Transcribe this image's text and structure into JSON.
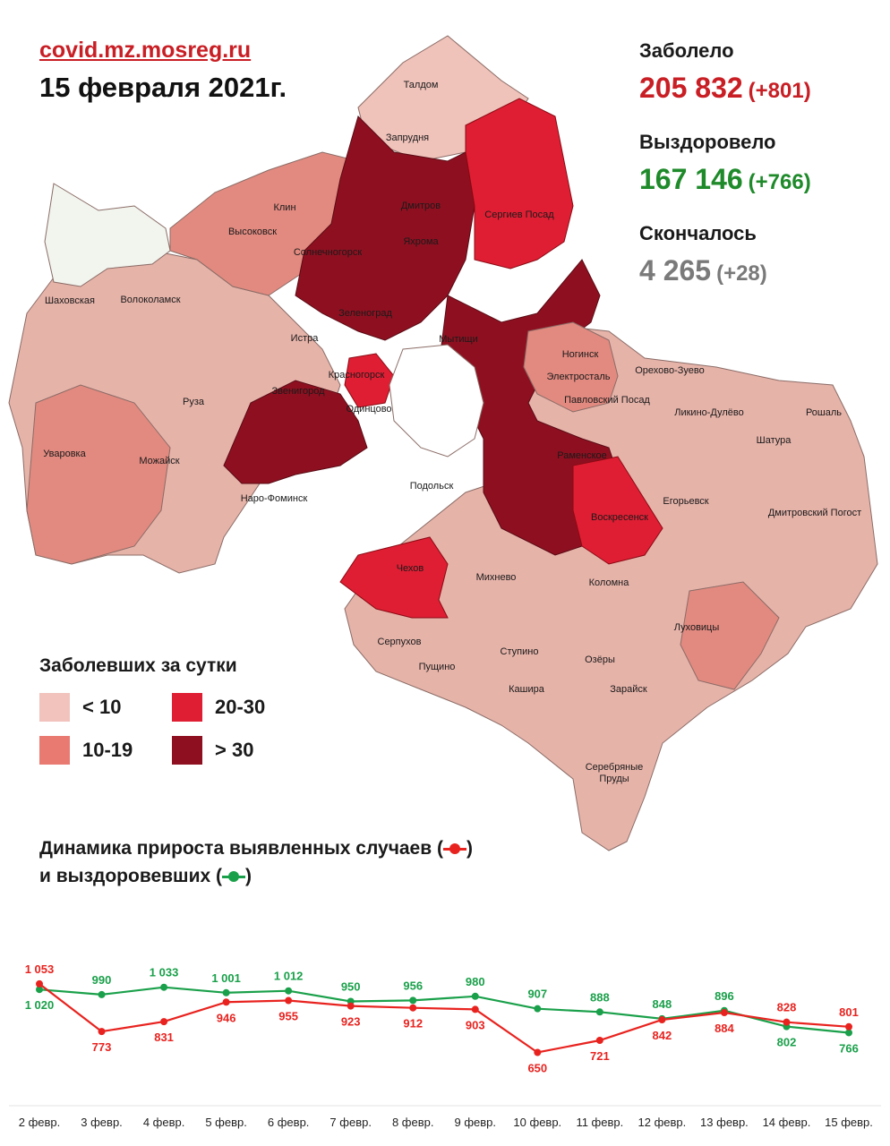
{
  "header": {
    "site": "covid.mz.mosreg.ru",
    "date": "15 февраля 2021г."
  },
  "stats": {
    "infected": {
      "label": "Заболело",
      "value": "205 832",
      "delta": "(+801)",
      "color": "#c81e24"
    },
    "recovered": {
      "label": "Выздоровело",
      "value": "167 146",
      "delta": "(+766)",
      "color": "#1e8a2a"
    },
    "died": {
      "label": "Скончалось",
      "value": "4 265",
      "delta": "(+28)",
      "color": "#7a7a7a"
    }
  },
  "legend": {
    "title": "Заболевших за сутки",
    "items": [
      {
        "label": "< 10",
        "color": "#f2c3bd"
      },
      {
        "label": "20-30",
        "color": "#e01e33"
      },
      {
        "label": "10-19",
        "color": "#e97a72"
      },
      {
        "label": "> 30",
        "color": "#8e1020"
      }
    ]
  },
  "map": {
    "labels": [
      "Талдом",
      "Запрудня",
      "Дмитров",
      "Яхрома",
      "Сергиев Посад",
      "Клин",
      "Высоковск",
      "Солнечногорск",
      "Шаховская",
      "Волоколамск",
      "Зеленоград",
      "Мытищи",
      "Истра",
      "Красногорск",
      "Ногинск",
      "Орехово-Зуево",
      "Электросталь",
      "Павловский Посад",
      "Ликино-Дулёво",
      "Рошаль",
      "Звенигород",
      "Одинцово",
      "Руза",
      "Шатура",
      "Уваровка",
      "Можайск",
      "Раменское",
      "Наро-Фоминск",
      "Подольск",
      "Егорьевск",
      "Дмитровский Погост",
      "Воскресенск",
      "Чехов",
      "Михнево",
      "Коломна",
      "Луховицы",
      "Серпухов",
      "Пущино",
      "Ступино",
      "Озёры",
      "Кашира",
      "Зарайск",
      "Серебряные Пруды"
    ]
  },
  "dynamics": {
    "title_line1": "Динамика прироста выявленных случаев (",
    "title_line1_end": ")",
    "title_line2": "и выздоровевших (",
    "title_line2_end": ")"
  },
  "chart_data": {
    "type": "line",
    "categories": [
      "2 февр.",
      "3 февр.",
      "4 февр.",
      "5 февр.",
      "6 февр.",
      "7 февр.",
      "8 февр.",
      "9 февр.",
      "10 февр.",
      "11 февр.",
      "12 февр.",
      "13 февр.",
      "14 февр.",
      "15 февр."
    ],
    "series": [
      {
        "name": "выявленных случаев",
        "color": "#e8231f",
        "values": [
          1053,
          773,
          831,
          946,
          955,
          923,
          912,
          903,
          650,
          721,
          842,
          884,
          828,
          801
        ],
        "labels": [
          "1 053",
          "773",
          "831",
          "946",
          "955",
          "923",
          "912",
          "903",
          "650",
          "721",
          "842",
          "884",
          "828",
          "801"
        ]
      },
      {
        "name": "выздоровевших",
        "color": "#1aa04a",
        "values": [
          1020,
          990,
          1033,
          1001,
          1012,
          950,
          956,
          980,
          907,
          888,
          848,
          896,
          802,
          766
        ],
        "labels": [
          "1 020",
          "990",
          "1 033",
          "1 001",
          "1 012",
          "950",
          "956",
          "980",
          "907",
          "888",
          "848",
          "896",
          "802",
          "766"
        ]
      }
    ]
  }
}
